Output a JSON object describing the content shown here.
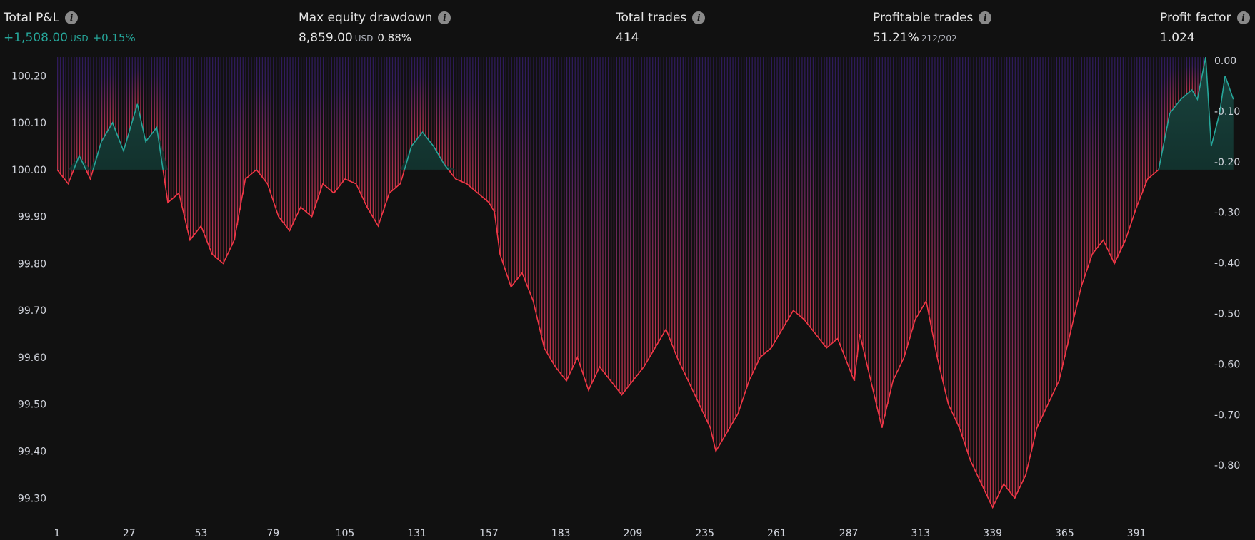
{
  "stats": {
    "total_pnl": {
      "label": "Total P&L",
      "value": "+1,508.00",
      "unit": "USD",
      "pct": "+0.15%"
    },
    "max_drawdown": {
      "label": "Max equity drawdown",
      "value": "8,859.00",
      "unit": "USD",
      "pct": "0.88%"
    },
    "total_trades": {
      "label": "Total trades",
      "value": "414"
    },
    "profitable_trades": {
      "label": "Profitable trades",
      "value": "51.21%",
      "ratio": "212/202"
    },
    "profit_factor": {
      "label": "Profit factor",
      "value": "1.024"
    }
  },
  "chart_data": {
    "type": "line",
    "title": "",
    "xlabel": "",
    "ylabel": "",
    "x_ticks": [
      "1",
      "27",
      "53",
      "79",
      "105",
      "131",
      "157",
      "183",
      "209",
      "235",
      "261",
      "287",
      "313",
      "339",
      "365",
      "391"
    ],
    "x_tick_values": [
      1,
      27,
      53,
      79,
      105,
      131,
      157,
      183,
      209,
      235,
      261,
      287,
      313,
      339,
      365,
      391
    ],
    "xlim": [
      1,
      416
    ],
    "left_axis": {
      "ticks": [
        "100.20",
        "100.10",
        "100.00",
        "99.90",
        "99.80",
        "99.70",
        "99.60",
        "99.50",
        "99.40",
        "99.30"
      ],
      "tick_values": [
        100.2,
        100.1,
        100.0,
        99.9,
        99.8,
        99.7,
        99.6,
        99.5,
        99.4,
        99.3
      ],
      "ylim": [
        99.27,
        100.24
      ],
      "baseline": 100.0
    },
    "right_axis": {
      "ticks": [
        "0.00",
        "-0.10",
        "-0.20",
        "-0.30",
        "-0.40",
        "-0.50",
        "-0.60",
        "-0.70",
        "-0.80"
      ],
      "tick_values": [
        0.0,
        -0.1,
        -0.2,
        -0.3,
        -0.4,
        -0.5,
        -0.6,
        -0.7,
        -0.8
      ],
      "ylim": [
        -0.9,
        0.0
      ]
    },
    "series": [
      {
        "id": "equity",
        "axis": "left",
        "color_above": "#26a69a",
        "color_below": "#f23645",
        "points": [
          [
            1,
            100.0
          ],
          [
            5,
            99.97
          ],
          [
            9,
            100.03
          ],
          [
            13,
            99.98
          ],
          [
            17,
            100.06
          ],
          [
            21,
            100.1
          ],
          [
            25,
            100.04
          ],
          [
            30,
            100.14
          ],
          [
            33,
            100.06
          ],
          [
            37,
            100.09
          ],
          [
            41,
            99.93
          ],
          [
            45,
            99.95
          ],
          [
            49,
            99.85
          ],
          [
            53,
            99.88
          ],
          [
            57,
            99.82
          ],
          [
            61,
            99.8
          ],
          [
            65,
            99.85
          ],
          [
            69,
            99.98
          ],
          [
            73,
            100.0
          ],
          [
            77,
            99.97
          ],
          [
            81,
            99.9
          ],
          [
            85,
            99.87
          ],
          [
            89,
            99.92
          ],
          [
            93,
            99.9
          ],
          [
            97,
            99.97
          ],
          [
            101,
            99.95
          ],
          [
            105,
            99.98
          ],
          [
            109,
            99.97
          ],
          [
            113,
            99.92
          ],
          [
            117,
            99.88
          ],
          [
            121,
            99.95
          ],
          [
            125,
            99.97
          ],
          [
            129,
            100.05
          ],
          [
            133,
            100.08
          ],
          [
            137,
            100.05
          ],
          [
            141,
            100.01
          ],
          [
            145,
            99.98
          ],
          [
            149,
            99.97
          ],
          [
            153,
            99.95
          ],
          [
            157,
            99.93
          ],
          [
            159,
            99.91
          ],
          [
            161,
            99.82
          ],
          [
            165,
            99.75
          ],
          [
            169,
            99.78
          ],
          [
            173,
            99.72
          ],
          [
            177,
            99.62
          ],
          [
            181,
            99.58
          ],
          [
            185,
            99.55
          ],
          [
            189,
            99.6
          ],
          [
            193,
            99.53
          ],
          [
            197,
            99.58
          ],
          [
            201,
            99.55
          ],
          [
            205,
            99.52
          ],
          [
            209,
            99.55
          ],
          [
            213,
            99.58
          ],
          [
            217,
            99.62
          ],
          [
            221,
            99.66
          ],
          [
            225,
            99.6
          ],
          [
            229,
            99.55
          ],
          [
            233,
            99.5
          ],
          [
            237,
            99.45
          ],
          [
            239,
            99.4
          ],
          [
            243,
            99.44
          ],
          [
            247,
            99.48
          ],
          [
            251,
            99.55
          ],
          [
            255,
            99.6
          ],
          [
            259,
            99.62
          ],
          [
            263,
            99.66
          ],
          [
            267,
            99.7
          ],
          [
            271,
            99.68
          ],
          [
            275,
            99.65
          ],
          [
            279,
            99.62
          ],
          [
            283,
            99.64
          ],
          [
            287,
            99.58
          ],
          [
            289,
            99.55
          ],
          [
            291,
            99.65
          ],
          [
            295,
            99.55
          ],
          [
            299,
            99.45
          ],
          [
            303,
            99.55
          ],
          [
            307,
            99.6
          ],
          [
            311,
            99.68
          ],
          [
            315,
            99.72
          ],
          [
            319,
            99.6
          ],
          [
            323,
            99.5
          ],
          [
            327,
            99.45
          ],
          [
            331,
            99.38
          ],
          [
            335,
            99.33
          ],
          [
            339,
            99.28
          ],
          [
            343,
            99.33
          ],
          [
            347,
            99.3
          ],
          [
            351,
            99.35
          ],
          [
            355,
            99.45
          ],
          [
            359,
            99.5
          ],
          [
            363,
            99.55
          ],
          [
            367,
            99.65
          ],
          [
            371,
            99.75
          ],
          [
            375,
            99.82
          ],
          [
            379,
            99.85
          ],
          [
            383,
            99.8
          ],
          [
            387,
            99.85
          ],
          [
            391,
            99.92
          ],
          [
            395,
            99.98
          ],
          [
            399,
            100.0
          ],
          [
            403,
            100.12
          ],
          [
            407,
            100.15
          ],
          [
            411,
            100.17
          ],
          [
            413,
            100.15
          ],
          [
            416,
            100.24
          ],
          [
            418,
            100.05
          ],
          [
            421,
            100.12
          ],
          [
            423,
            100.2
          ],
          [
            426,
            100.15
          ]
        ]
      }
    ],
    "drawdown_bars": {
      "axis": "right",
      "color_top": "#3b1d6e",
      "color_bottom": "#c2364a",
      "note": "per-trade drawdown bars follow the equity curve below its running peak"
    }
  }
}
